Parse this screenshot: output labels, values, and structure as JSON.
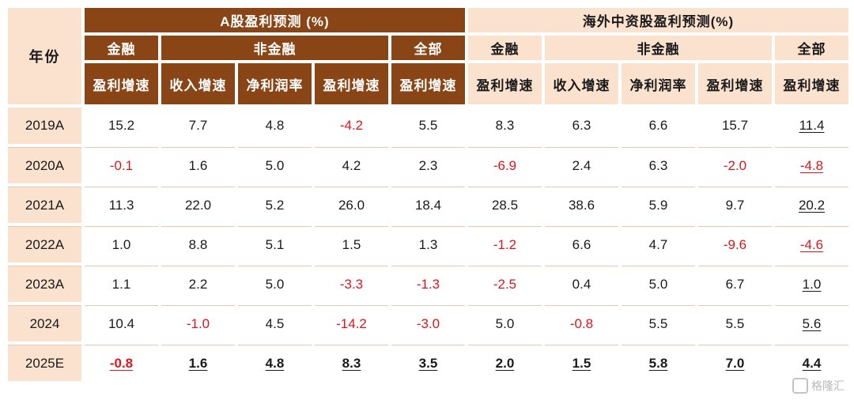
{
  "chart_data": {
    "type": "table",
    "year_header": "年份",
    "group_a": "A股盈利预测 (%)",
    "group_b": "海外中资股盈利预测(%)",
    "sub_a": [
      "金融",
      "非金融",
      "全部"
    ],
    "sub_b": [
      "金融",
      "非金融",
      "全部"
    ],
    "metrics": [
      "盈利增速",
      "收入增速",
      "净利润率",
      "盈利增速",
      "盈利增速",
      "盈利增速",
      "收入增速",
      "净利润率",
      "盈利增速",
      "盈利增速"
    ],
    "rows": [
      {
        "year": "2019A",
        "values": [
          "15.2",
          "7.7",
          "4.8",
          "-4.2",
          "5.5",
          "8.3",
          "6.3",
          "6.6",
          "15.7",
          "11.4"
        ]
      },
      {
        "year": "2020A",
        "values": [
          "-0.1",
          "1.6",
          "5.0",
          "4.2",
          "2.3",
          "-6.9",
          "2.4",
          "6.3",
          "-2.0",
          "-4.8"
        ]
      },
      {
        "year": "2021A",
        "values": [
          "11.3",
          "22.0",
          "5.2",
          "26.0",
          "18.4",
          "28.5",
          "38.6",
          "5.9",
          "9.7",
          "20.2"
        ]
      },
      {
        "year": "2022A",
        "values": [
          "1.0",
          "8.8",
          "5.1",
          "1.5",
          "1.3",
          "-1.2",
          "6.6",
          "4.7",
          "-9.6",
          "-4.6"
        ]
      },
      {
        "year": "2023A",
        "values": [
          "1.1",
          "2.2",
          "5.0",
          "-3.3",
          "-1.3",
          "-2.5",
          "0.4",
          "5.0",
          "6.7",
          "1.0"
        ]
      },
      {
        "year": "2024",
        "values": [
          "10.4",
          "-1.0",
          "4.5",
          "-14.2",
          "-3.0",
          "5.0",
          "-0.8",
          "5.5",
          "5.5",
          "5.6"
        ]
      },
      {
        "year": "2025E",
        "values": [
          "-0.8",
          "1.6",
          "4.8",
          "8.3",
          "3.5",
          "2.0",
          "1.5",
          "5.8",
          "7.0",
          "4.4"
        ]
      }
    ]
  },
  "watermark": "格隆汇",
  "colors": {
    "brown": "#8a4516",
    "peach": "#fbe2cf",
    "negative": "#e1141b"
  }
}
